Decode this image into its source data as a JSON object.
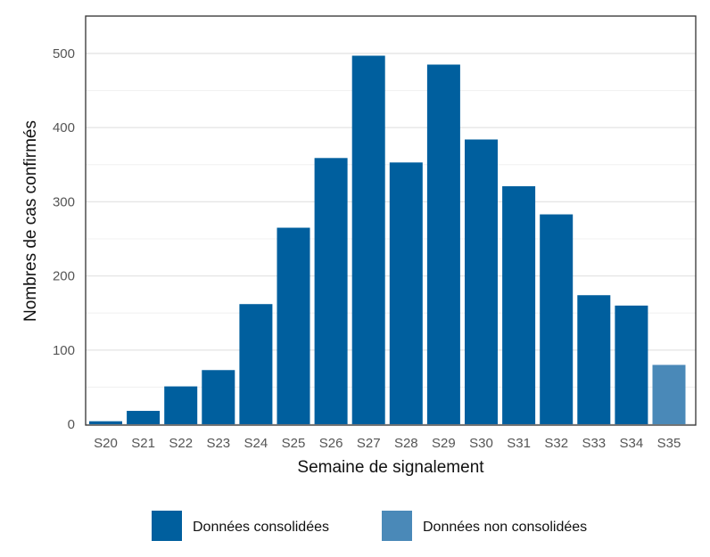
{
  "chart_data": {
    "type": "bar",
    "title": "",
    "xlabel": "Semaine de signalement",
    "ylabel": "Nombres de cas confirmés",
    "categories": [
      "S20",
      "S21",
      "S22",
      "S23",
      "S24",
      "S25",
      "S26",
      "S27",
      "S28",
      "S29",
      "S30",
      "S31",
      "S32",
      "S33",
      "S34",
      "S35"
    ],
    "values": [
      4,
      18,
      51,
      73,
      162,
      265,
      359,
      497,
      353,
      485,
      384,
      321,
      283,
      174,
      160,
      80
    ],
    "status": [
      "consolidated",
      "consolidated",
      "consolidated",
      "consolidated",
      "consolidated",
      "consolidated",
      "consolidated",
      "consolidated",
      "consolidated",
      "consolidated",
      "consolidated",
      "consolidated",
      "consolidated",
      "consolidated",
      "consolidated",
      "non_consolidated"
    ],
    "ylim": [
      0,
      550
    ],
    "yticks": [
      0,
      100,
      200,
      300,
      400,
      500
    ],
    "grid": true,
    "legend_position": "bottom",
    "legend": [
      {
        "key": "consolidated",
        "label": "Données consolidées",
        "color": "#005f9e"
      },
      {
        "key": "non_consolidated",
        "label": "Données non consolidées",
        "color": "#4a89b8"
      }
    ]
  }
}
